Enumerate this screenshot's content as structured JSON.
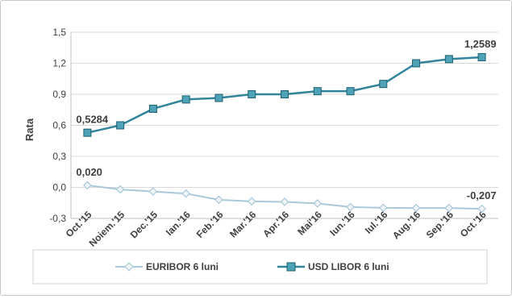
{
  "chart_data": {
    "type": "line",
    "title": "",
    "xlabel": "",
    "ylabel": "Rata",
    "ylim": [
      -0.3,
      1.5
    ],
    "yticks": [
      "1,5",
      "1,2",
      "0,9",
      "0,6",
      "0,3",
      "0,0",
      "-0,3"
    ],
    "ytick_values": [
      1.5,
      1.2,
      0.9,
      0.6,
      0.3,
      0.0,
      -0.3
    ],
    "grid": true,
    "legend_position": "bottom",
    "categories": [
      "Oct.'15",
      "Noiem.'15",
      "Dec.'15",
      "Ian.'16",
      "Feb.'16",
      "Mar.'16",
      "Apr.'16",
      "Mai'16",
      "Iun.'16",
      "Iul.'16",
      "Aug.'16",
      "Sep.'16",
      "Oct.'16"
    ],
    "series": [
      {
        "name": "EURIBOR 6 luni",
        "color": "#a9c8d8",
        "marker": "diamond",
        "values": [
          0.02,
          -0.02,
          -0.04,
          -0.06,
          -0.12,
          -0.135,
          -0.14,
          -0.155,
          -0.19,
          -0.198,
          -0.2,
          -0.2,
          -0.207
        ]
      },
      {
        "name": "USD LIBOR 6 luni",
        "color": "#31849b",
        "marker": "square",
        "values": [
          0.5284,
          0.6,
          0.76,
          0.85,
          0.865,
          0.9,
          0.9,
          0.93,
          0.93,
          1.0,
          1.2,
          1.24,
          1.2589
        ]
      }
    ],
    "annotations": [
      {
        "series": 1,
        "index": 0,
        "text": "0,5284"
      },
      {
        "series": 1,
        "index": 12,
        "text": "1,2589"
      },
      {
        "series": 0,
        "index": 0,
        "text": "0,020"
      },
      {
        "series": 0,
        "index": 12,
        "text": "-0,207"
      }
    ]
  }
}
